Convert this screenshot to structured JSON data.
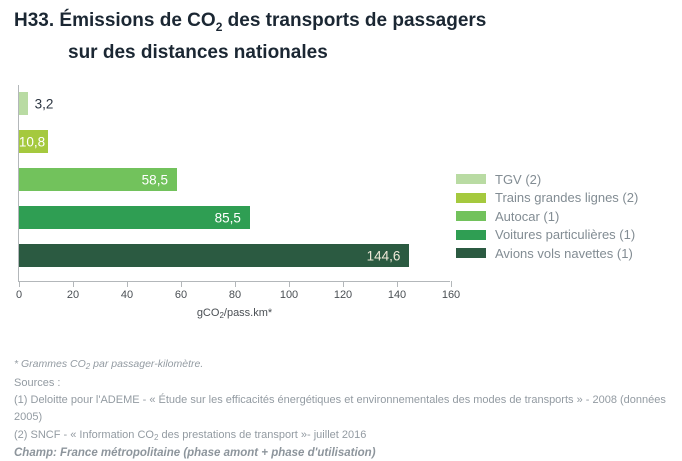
{
  "title": {
    "line1_pre": "H33. Émissions de CO",
    "line1_sub": "2",
    "line1_post": " des transports de passagers",
    "line2": "sur des distances nationales"
  },
  "chart_data": {
    "type": "bar",
    "orientation": "horizontal",
    "categories": [
      "TGV (2)",
      "Trains grandes lignes (2)",
      "Autocar (1)",
      "Voitures particulières (1)",
      "Avions vols navettes (1)"
    ],
    "values": [
      3.2,
      10.8,
      58.5,
      85.5,
      144.6
    ],
    "value_labels": [
      "3,2",
      "10,8",
      "58,5",
      "85,5",
      "144,6"
    ],
    "bar_colors": [
      "#b9dba3",
      "#a5c93e",
      "#72c25c",
      "#2f9e53",
      "#2b5a41"
    ],
    "value_label_colors": [
      "#2b3440",
      "#ffffff",
      "#ffffff",
      "#ffffff",
      "#efe9d8"
    ],
    "xlim": [
      0,
      160
    ],
    "xticks": [
      0,
      20,
      40,
      60,
      80,
      100,
      120,
      140,
      160
    ],
    "xlabel_pre": "gCO",
    "xlabel_sub": "2",
    "xlabel_post": "/pass.km*",
    "grid": false,
    "legend_position": "right"
  },
  "legend": {
    "items": [
      {
        "label": "TGV (2)",
        "color": "#b9dba3"
      },
      {
        "label": "Trains grandes lignes (2)",
        "color": "#a5c93e"
      },
      {
        "label": "Autocar (1)",
        "color": "#72c25c"
      },
      {
        "label": "Voitures particulières (1)",
        "color": "#2f9e53"
      },
      {
        "label": "Avions vols navettes (1)",
        "color": "#2b5a41"
      }
    ]
  },
  "footnotes": {
    "star_pre": "* Grammes CO",
    "star_sub": "2",
    "star_post": " par passager-kilomètre.",
    "sources_label": "Sources :",
    "source1": "(1) Deloitte pour l'ADEME - « Étude sur les efficacités énergétiques et environnementales des modes de transports » - 2008 (données 2005)",
    "source2_pre": "(2) SNCF - « Information CO",
    "source2_sub": "2",
    "source2_post": " des prestations de transport »- juillet 2016",
    "champ": "Champ: France métropolitaine  (phase amont + phase d'utilisation)"
  }
}
